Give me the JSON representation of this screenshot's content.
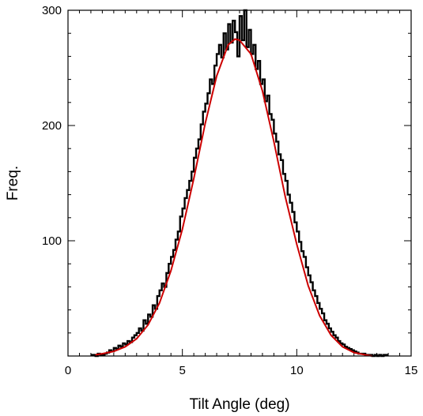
{
  "chart_data": {
    "type": "histogram-with-fit",
    "xlabel": "Tilt Angle (deg)",
    "ylabel": "Freq.",
    "xlim": [
      0,
      15
    ],
    "ylim": [
      0,
      300
    ],
    "x_ticks": [
      0,
      5,
      10,
      15
    ],
    "y_ticks": [
      100,
      200,
      300
    ],
    "grid": false,
    "histogram": {
      "color": "#000000",
      "bin_width": 0.1,
      "x": [
        1.0,
        1.1,
        1.2,
        1.3,
        1.4,
        1.5,
        1.6,
        1.7,
        1.8,
        1.9,
        2.0,
        2.1,
        2.2,
        2.3,
        2.4,
        2.5,
        2.6,
        2.7,
        2.8,
        2.9,
        3.0,
        3.1,
        3.2,
        3.3,
        3.4,
        3.5,
        3.6,
        3.7,
        3.8,
        3.9,
        4.0,
        4.1,
        4.2,
        4.3,
        4.4,
        4.5,
        4.6,
        4.7,
        4.8,
        4.9,
        5.0,
        5.1,
        5.2,
        5.3,
        5.4,
        5.5,
        5.6,
        5.7,
        5.8,
        5.9,
        6.0,
        6.1,
        6.2,
        6.3,
        6.4,
        6.5,
        6.6,
        6.7,
        6.8,
        6.9,
        7.0,
        7.1,
        7.2,
        7.3,
        7.4,
        7.5,
        7.6,
        7.7,
        7.8,
        7.9,
        8.0,
        8.1,
        8.2,
        8.3,
        8.4,
        8.5,
        8.6,
        8.7,
        8.8,
        8.9,
        9.0,
        9.1,
        9.2,
        9.3,
        9.4,
        9.5,
        9.6,
        9.7,
        9.8,
        9.9,
        10.0,
        10.1,
        10.2,
        10.3,
        10.4,
        10.5,
        10.6,
        10.7,
        10.8,
        10.9,
        11.0,
        11.1,
        11.2,
        11.3,
        11.4,
        11.5,
        11.6,
        11.7,
        11.8,
        11.9,
        12.0,
        12.1,
        12.2,
        12.3,
        12.4,
        12.5,
        12.6,
        12.7,
        12.8,
        12.9,
        13.0,
        13.1,
        13.2,
        13.3,
        13.4,
        13.5,
        13.6,
        13.7,
        13.8,
        13.9
      ],
      "values": [
        1,
        1,
        0,
        2,
        1,
        1,
        2,
        3,
        5,
        4,
        7,
        6,
        9,
        8,
        11,
        10,
        13,
        12,
        16,
        18,
        20,
        24,
        22,
        31,
        28,
        36,
        34,
        44,
        41,
        52,
        57,
        63,
        60,
        72,
        80,
        86,
        92,
        101,
        108,
        121,
        128,
        137,
        144,
        152,
        160,
        172,
        180,
        188,
        201,
        212,
        219,
        228,
        240,
        236,
        252,
        262,
        270,
        259,
        280,
        266,
        288,
        272,
        291,
        281,
        260,
        295,
        274,
        300,
        268,
        283,
        262,
        270,
        249,
        256,
        236,
        240,
        221,
        226,
        210,
        205,
        193,
        186,
        175,
        170,
        158,
        152,
        140,
        133,
        125,
        116,
        108,
        99,
        91,
        86,
        77,
        70,
        64,
        57,
        52,
        46,
        41,
        37,
        31,
        28,
        24,
        21,
        18,
        16,
        13,
        11,
        10,
        8,
        7,
        6,
        5,
        4,
        3,
        2,
        2,
        2,
        1,
        1,
        1,
        0,
        1,
        0,
        1,
        0,
        1,
        1
      ]
    },
    "fit_curve": {
      "color": "#cc0000",
      "x": [
        1.2,
        1.5,
        2.0,
        2.5,
        3.0,
        3.5,
        4.0,
        4.5,
        5.0,
        5.5,
        6.0,
        6.5,
        7.0,
        7.3,
        7.5,
        8.0,
        8.5,
        9.0,
        9.5,
        10.0,
        10.5,
        11.0,
        11.5,
        12.0,
        12.5,
        13.0,
        13.3
      ],
      "values": [
        1,
        2,
        4,
        8,
        15,
        27,
        46,
        74,
        110,
        154,
        202,
        243,
        270,
        275,
        274,
        262,
        230,
        186,
        138,
        97,
        61,
        35,
        18,
        8,
        3,
        1,
        0
      ]
    }
  }
}
